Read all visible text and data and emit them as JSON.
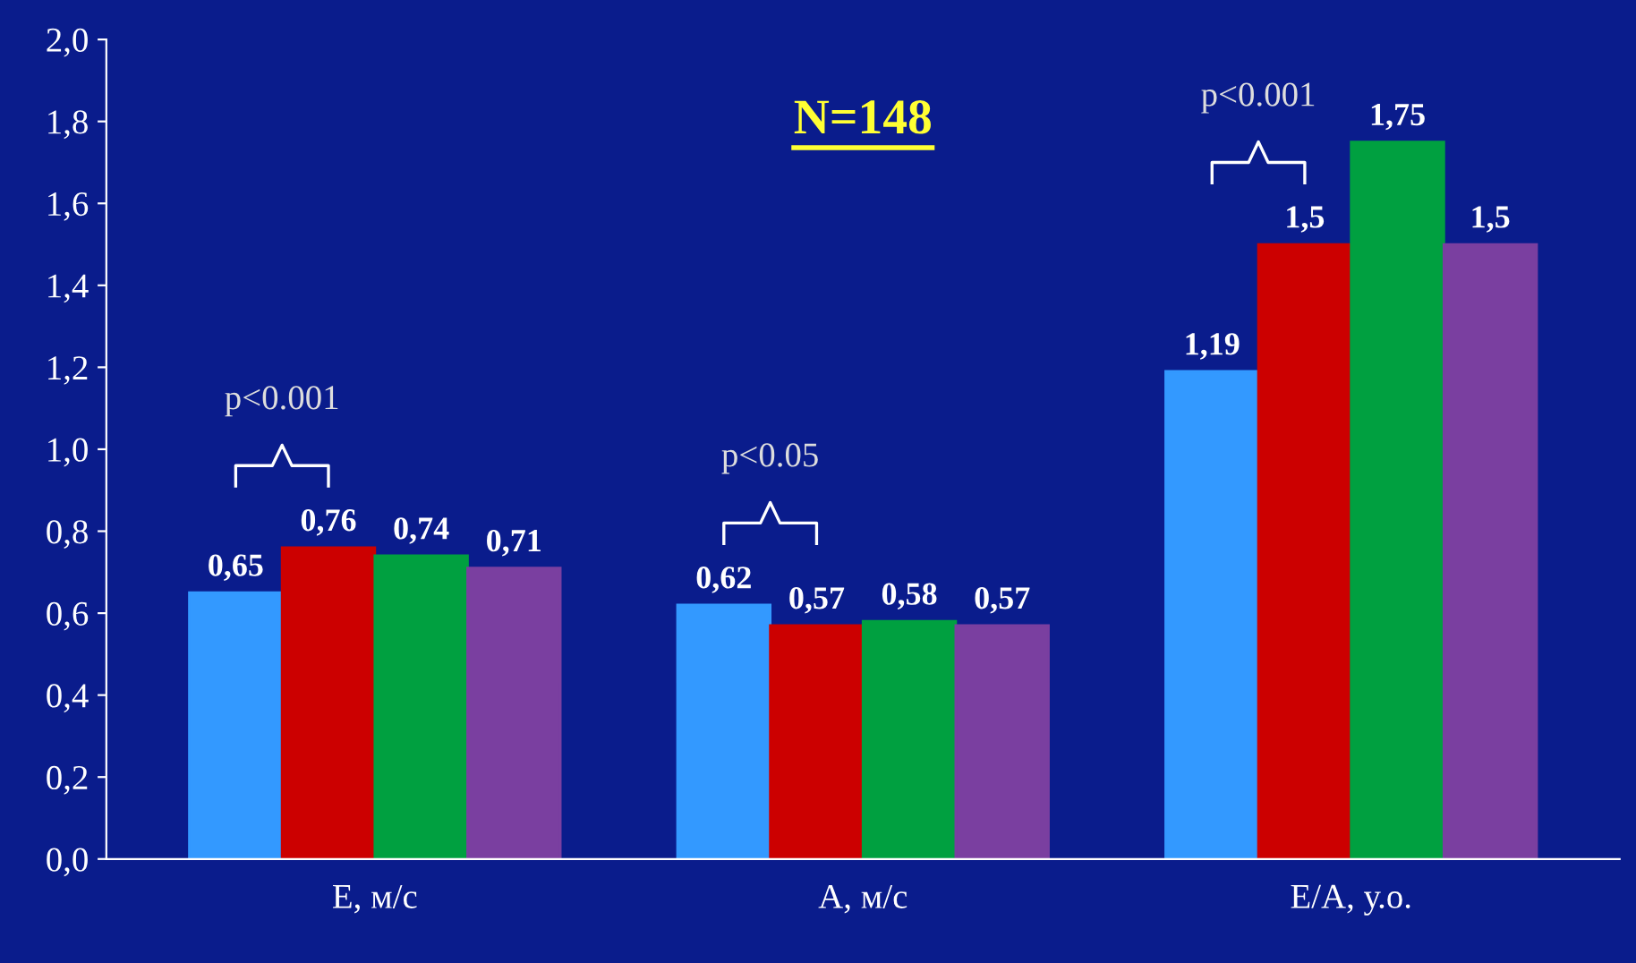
{
  "chart_data": {
    "type": "bar",
    "title": "N=148",
    "categories": [
      "Е, м/с",
      "А, м/с",
      "Е/А, у.о."
    ],
    "series": [
      {
        "color": "#3399ff",
        "values": [
          0.65,
          0.62,
          1.19
        ],
        "value_labels": [
          "0,65",
          "0,62",
          "1,19"
        ]
      },
      {
        "color": "#cc0000",
        "values": [
          0.76,
          0.57,
          1.5
        ],
        "value_labels": [
          "0,76",
          "0,57",
          "1,5"
        ]
      },
      {
        "color": "#00a040",
        "values": [
          0.74,
          0.58,
          1.75
        ],
        "value_labels": [
          "0,74",
          "0,58",
          "1,75"
        ]
      },
      {
        "color": "#7a3fa0",
        "values": [
          0.71,
          0.57,
          1.5
        ],
        "value_labels": [
          "0,71",
          "0,57",
          "1,5"
        ]
      }
    ],
    "ylim": [
      0,
      2.0
    ],
    "yticks": [
      {
        "value": 0,
        "label": "0,0"
      },
      {
        "value": 0.2,
        "label": "0,2"
      },
      {
        "value": 0.4,
        "label": "0,4"
      },
      {
        "value": 0.6,
        "label": "0,6"
      },
      {
        "value": 0.8,
        "label": "0,8"
      },
      {
        "value": 1.0,
        "label": "1,0"
      },
      {
        "value": 1.2,
        "label": "1,2"
      },
      {
        "value": 1.4,
        "label": "1,4"
      },
      {
        "value": 1.6,
        "label": "1,6"
      },
      {
        "value": 1.8,
        "label": "1,8"
      },
      {
        "value": 2.0,
        "label": "2,0"
      }
    ],
    "annotations": [
      "p<0.001",
      "p<0.05",
      "p<0.001"
    ],
    "grid": false,
    "legend": false
  }
}
